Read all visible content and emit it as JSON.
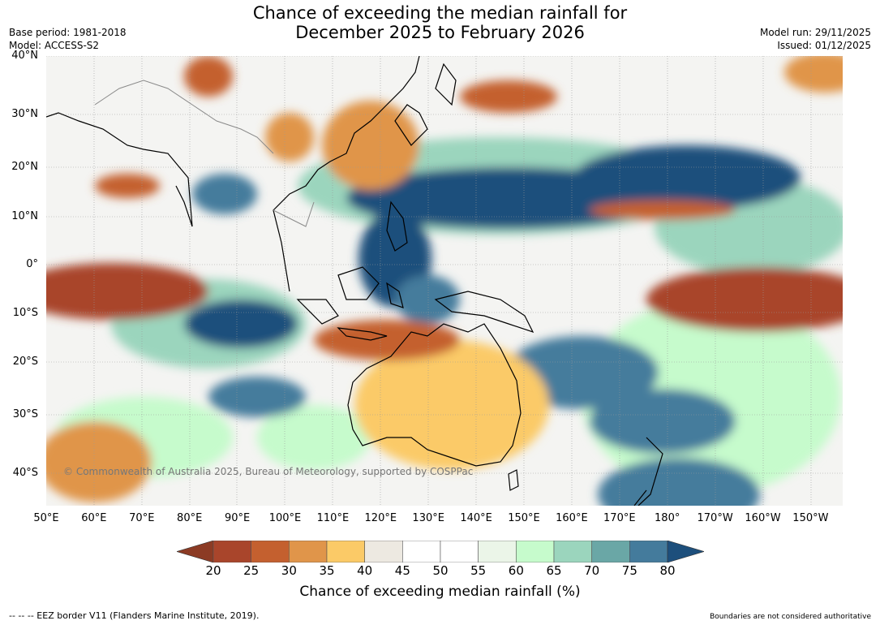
{
  "title_line1": "Chance of exceeding the median rainfall for",
  "title_line2": "December 2025 to February 2026",
  "base_period": "Base period: 1981-2018",
  "model": "Model: ACCESS-S2",
  "model_run": "Model run: 29/11/2025",
  "issued": "Issued: 01/12/2025",
  "lat_labels": [
    "40°N",
    "30°N",
    "20°N",
    "10°N",
    "0°",
    "10°S",
    "20°S",
    "30°S",
    "40°S"
  ],
  "lon_labels": [
    "50°E",
    "60°E",
    "70°E",
    "80°E",
    "90°E",
    "100°E",
    "110°E",
    "120°E",
    "130°E",
    "140°E",
    "150°E",
    "160°E",
    "170°E",
    "180°",
    "170°W",
    "160°W",
    "150°W"
  ],
  "copyright": "© Commonwealth of Australia 2025, Bureau of Meteorology, supported by COSPPac",
  "colorbar": {
    "ticks": [
      "20",
      "25",
      "30",
      "35",
      "40",
      "45",
      "50",
      "55",
      "60",
      "65",
      "70",
      "75",
      "80"
    ],
    "low_color": "#8c3b24",
    "high_color": "#1d4f7c",
    "colors": [
      "#a9452b",
      "#c4602f",
      "#e0954a",
      "#fbca67",
      "#ede9e1",
      "#ffffff",
      "#ffffff",
      "#ebf5e8",
      "#c6fbcc",
      "#9bd5bd",
      "#6aa7a6",
      "#447b9c"
    ],
    "label": "Chance of exceeding median rainfall (%)"
  },
  "footer_left": "--  --  -- EEZ border V11 (Flanders Marine Institute, 2019).",
  "footer_right": "Boundaries are not considered authoritative"
}
